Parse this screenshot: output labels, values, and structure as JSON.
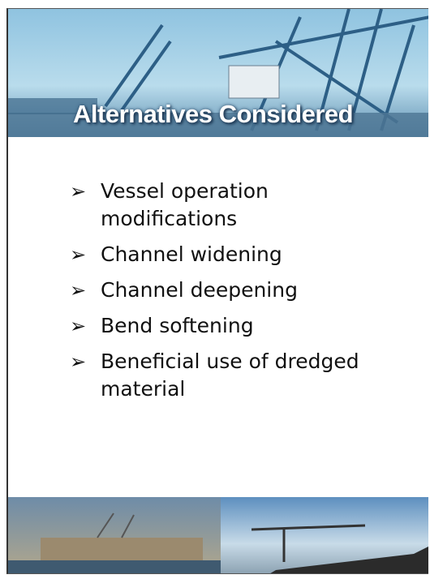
{
  "slide": {
    "title": "Alternatives Considered",
    "bullets": [
      "Vessel operation modifications",
      "Channel widening",
      "Channel deepening",
      "Bend softening",
      "Beneficial use of dredged material"
    ]
  }
}
